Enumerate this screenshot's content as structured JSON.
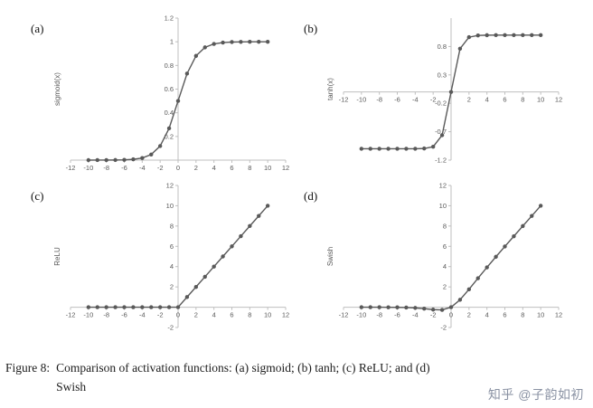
{
  "page": {
    "caption": {
      "label": "Figure 8:",
      "line1": "Comparison of activation functions: (a) sigmoid; (b) tanh; (c) ReLU; and (d)",
      "line2": "Swish"
    },
    "watermark": "知乎 @子韵如初"
  },
  "colors": {
    "line": "#595959",
    "axis": "#bfbfbf",
    "tick_text": "#595959"
  },
  "chart_data": [
    {
      "type": "line",
      "panel_label": "(a)",
      "ylabel": "sigmoid(x)",
      "xlim": [
        -12,
        12
      ],
      "ylim": [
        0,
        1.2
      ],
      "x_ticks": [
        -12,
        -10,
        -8,
        -6,
        -4,
        -2,
        0,
        2,
        4,
        6,
        8,
        10,
        12
      ],
      "y_ticks": [
        0.2,
        0.4,
        0.6,
        0.8,
        1,
        1.2
      ],
      "grid": false,
      "legend": "none",
      "x": [
        -10,
        -9,
        -8,
        -7,
        -6,
        -5,
        -4,
        -3,
        -2,
        -1,
        0,
        1,
        2,
        3,
        4,
        5,
        6,
        7,
        8,
        9,
        10
      ],
      "y": [
        4.5e-05,
        0.000123,
        0.000335,
        0.000911,
        0.002473,
        0.006693,
        0.017986,
        0.047426,
        0.119203,
        0.268941,
        0.5,
        0.731059,
        0.880797,
        0.952574,
        0.982014,
        0.993307,
        0.997527,
        0.999089,
        0.999665,
        0.999877,
        0.999955
      ]
    },
    {
      "type": "line",
      "panel_label": "(b)",
      "ylabel": "tanh(x)",
      "xlim": [
        -12,
        12
      ],
      "ylim": [
        -1.2,
        1.3
      ],
      "x_ticks": [
        -12,
        -10,
        -8,
        -6,
        -4,
        -2,
        2,
        4,
        6,
        8,
        10,
        12
      ],
      "y_ticks": [
        0.8,
        0.3,
        -0.2,
        -0.7,
        -1.2
      ],
      "grid": false,
      "legend": "none",
      "x": [
        -10,
        -9,
        -8,
        -7,
        -6,
        -5,
        -4,
        -3,
        -2,
        -1,
        0,
        1,
        2,
        3,
        4,
        5,
        6,
        7,
        8,
        9,
        10
      ],
      "y": [
        -1,
        -1,
        -0.999999,
        -0.999998,
        -0.999988,
        -0.999909,
        -0.999329,
        -0.995055,
        -0.964028,
        -0.761594,
        0,
        0.761594,
        0.964028,
        0.995055,
        0.999329,
        0.999909,
        0.999988,
        0.999998,
        0.999999,
        1,
        1
      ]
    },
    {
      "type": "line",
      "panel_label": "(c)",
      "ylabel": "ReLU",
      "xlim": [
        -12,
        12
      ],
      "ylim": [
        -2,
        12
      ],
      "x_ticks": [
        -12,
        -10,
        -8,
        -6,
        -4,
        -2,
        0,
        2,
        4,
        6,
        8,
        10,
        12
      ],
      "y_ticks": [
        -2,
        2,
        4,
        6,
        8,
        10,
        12
      ],
      "grid": false,
      "legend": "none",
      "x": [
        -10,
        -9,
        -8,
        -7,
        -6,
        -5,
        -4,
        -3,
        -2,
        -1,
        0,
        1,
        2,
        3,
        4,
        5,
        6,
        7,
        8,
        9,
        10
      ],
      "y": [
        0,
        0,
        0,
        0,
        0,
        0,
        0,
        0,
        0,
        0,
        0,
        1,
        2,
        3,
        4,
        5,
        6,
        7,
        8,
        9,
        10
      ]
    },
    {
      "type": "line",
      "panel_label": "(d)",
      "ylabel": "Swish",
      "xlim": [
        -12,
        12
      ],
      "ylim": [
        -2,
        12
      ],
      "x_ticks": [
        -12,
        -10,
        -8,
        -6,
        -4,
        -2,
        0,
        2,
        4,
        6,
        8,
        10,
        12
      ],
      "y_ticks": [
        -2,
        2,
        4,
        6,
        8,
        10,
        12
      ],
      "grid": false,
      "legend": "none",
      "x": [
        -10,
        -9,
        -8,
        -7,
        -6,
        -5,
        -4,
        -3,
        -2,
        -1,
        0,
        1,
        2,
        3,
        4,
        5,
        6,
        7,
        8,
        9,
        10
      ],
      "y": [
        -0.000454,
        -0.001111,
        -0.002683,
        -0.006377,
        -0.014836,
        -0.033464,
        -0.071945,
        -0.142278,
        -0.238406,
        -0.268941,
        0,
        0.731059,
        1.761594,
        2.857722,
        3.928055,
        4.966536,
        5.985164,
        6.993623,
        7.997317,
        8.998889,
        9.999546
      ]
    }
  ]
}
